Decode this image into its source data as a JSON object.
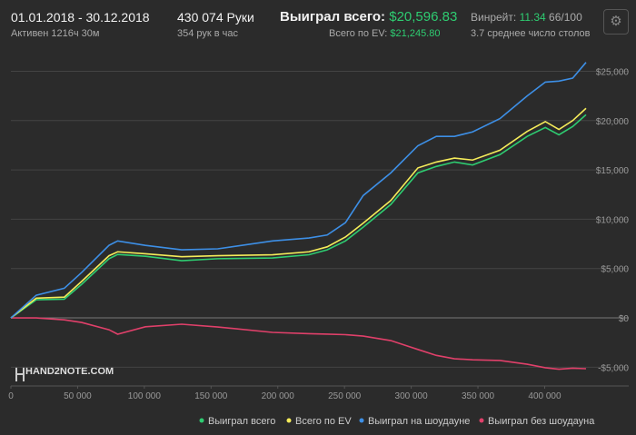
{
  "header": {
    "period": "01.01.2018 - 30.12.2018",
    "active": "Активен 1216ч 30м",
    "hands": "430 074 Руки",
    "hands_per_hour": "354 рук в час",
    "won_label": "Выиграл всего:",
    "won_value": "$20,596.83",
    "ev_label": "Всего по EV:",
    "ev_value": "$21,245.80",
    "winrate_label": "Винрейт:",
    "winrate_value": "11.34",
    "winrate_scale": "66/100",
    "tables": "3.7 среднее число столов",
    "watermark": "HAND2NOTE.COM"
  },
  "chart_data": {
    "type": "line",
    "grid": true,
    "xlim": [
      0,
      431000
    ],
    "ylim": [
      -6900,
      26700
    ],
    "xticks": [
      0,
      {
        "value": 50000,
        "label": "50 000"
      },
      {
        "value": 100000,
        "label": "100 000"
      },
      {
        "value": 150000,
        "label": "150 000"
      },
      {
        "value": 200000,
        "label": "200 000"
      },
      {
        "value": 250000,
        "label": "250 000"
      },
      {
        "value": 300000,
        "label": "300 000"
      },
      {
        "value": 350000,
        "label": "350 000"
      },
      {
        "value": 400000,
        "label": "400 000"
      }
    ],
    "yticks": [
      {
        "value": -5000,
        "label": "-$5,000"
      },
      {
        "value": 0,
        "label": "$0"
      },
      {
        "value": 5000,
        "label": "$5,000"
      },
      {
        "value": 10000,
        "label": "$10,000"
      },
      {
        "value": 15000,
        "label": "$15,000"
      },
      {
        "value": 20000,
        "label": "$20,000"
      },
      {
        "value": 25000,
        "label": "$25,000"
      }
    ],
    "x": [
      0,
      19000,
      40000,
      53000,
      73500,
      80000,
      100800,
      128000,
      155000,
      196000,
      223400,
      237000,
      250700,
      264000,
      284700,
      305000,
      318800,
      332400,
      346000,
      366500,
      386900,
      400500,
      410700,
      421000,
      431000
    ],
    "series": [
      {
        "name": "Выиграл всего",
        "color": "#2ecc71",
        "values": [
          0,
          1840,
          1900,
          3400,
          6000,
          6430,
          6250,
          5800,
          6000,
          6070,
          6400,
          6900,
          7800,
          9200,
          11500,
          14700,
          15350,
          15800,
          15500,
          16550,
          18400,
          19300,
          18560,
          19400,
          20597
        ]
      },
      {
        "name": "Всего по EV",
        "color": "#f5ec5a",
        "values": [
          0,
          2000,
          2100,
          3700,
          6300,
          6700,
          6500,
          6200,
          6300,
          6400,
          6700,
          7200,
          8200,
          9600,
          11900,
          15200,
          15800,
          16200,
          16000,
          17000,
          18900,
          19900,
          19100,
          20000,
          21246
        ]
      },
      {
        "name": "Выиграл на шоудауне",
        "color": "#3d8fe6",
        "values": [
          0,
          2300,
          3000,
          4600,
          7350,
          7800,
          7350,
          6900,
          7000,
          7800,
          8100,
          8400,
          9650,
          12400,
          14700,
          17450,
          18400,
          18400,
          18850,
          20200,
          22500,
          23900,
          24000,
          24300,
          25900
        ]
      },
      {
        "name": "Выиграл без шоудауна",
        "color": "#e0406a",
        "values": [
          0,
          0,
          -200,
          -460,
          -1200,
          -1650,
          -900,
          -640,
          -920,
          -1470,
          -1600,
          -1650,
          -1700,
          -1840,
          -2300,
          -3200,
          -3800,
          -4140,
          -4250,
          -4320,
          -4700,
          -5050,
          -5200,
          -5100,
          -5150
        ]
      }
    ]
  }
}
